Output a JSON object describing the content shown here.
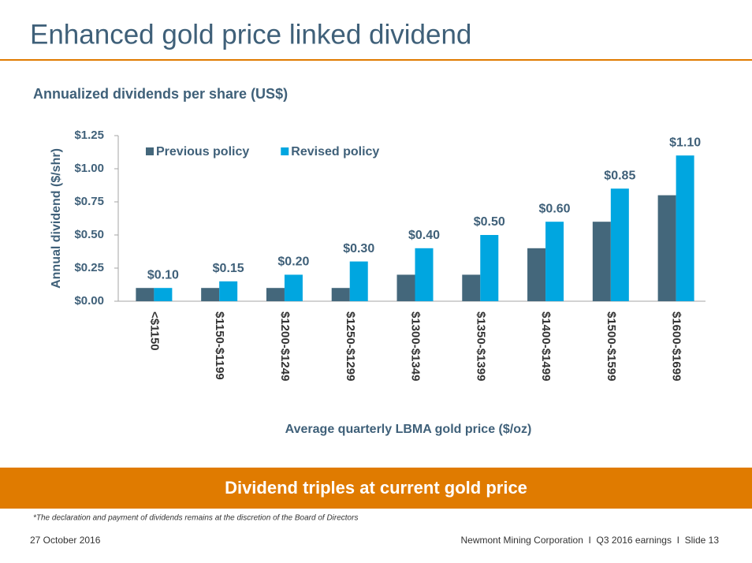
{
  "title": "Enhanced gold price linked dividend",
  "chart_data": {
    "type": "bar",
    "title": "Annualized dividends per share (US$)",
    "x_label": "Average quarterly LBMA gold price ($/oz)",
    "y_label": "Annual dividend ($/shr)",
    "categories": [
      "<$1150",
      "$1150-$1199",
      "$1200-$1249",
      "$1250-$1299",
      "$1300-$1349",
      "$1350-$1399",
      "$1400-$1499",
      "$1500-$1599",
      "$1600-$1699"
    ],
    "series": [
      {
        "name": "Previous policy",
        "color": "#44677b",
        "values": [
          0.1,
          0.1,
          0.1,
          0.1,
          0.2,
          0.2,
          0.4,
          0.6,
          0.8
        ]
      },
      {
        "name": "Revised policy",
        "color": "#00a6e0",
        "values": [
          0.1,
          0.15,
          0.2,
          0.3,
          0.4,
          0.5,
          0.6,
          0.85,
          1.1
        ],
        "value_labels": [
          "$0.10",
          "$0.15",
          "$0.20",
          "$0.30",
          "$0.40",
          "$0.50",
          "$0.60",
          "$0.85",
          "$1.10"
        ]
      }
    ],
    "ylim": [
      0,
      1.25
    ],
    "yticks": [
      {
        "value": 0,
        "label": "$0.00"
      },
      {
        "value": 0.25,
        "label": "$0.25"
      },
      {
        "value": 0.5,
        "label": "$0.50"
      },
      {
        "value": 0.75,
        "label": "$0.75"
      },
      {
        "value": 1,
        "label": "$1.00"
      },
      {
        "value": 1.25,
        "label": "$1.25"
      }
    ],
    "grid": false,
    "legend": "top-left"
  },
  "banner": "Dividend triples at current gold price",
  "footnote": "*The declaration and payment of dividends remains at the discretion of the Board of Directors",
  "footer": {
    "date": "27 October 2016",
    "text": "Newmont Mining Corporation  I  Q3 2016 earnings  I  Slide 13"
  }
}
